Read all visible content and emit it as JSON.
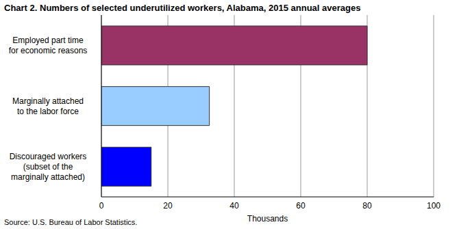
{
  "chart_data": {
    "type": "bar",
    "orientation": "horizontal",
    "title": "Chart 2. Numbers of selected underutilized workers, Alabama, 2015 annual averages",
    "categories": [
      "Employed part time for economic reasons",
      "Marginally attached to the labor force",
      "Discouraged workers (subset of the marginally attached)"
    ],
    "values": [
      80,
      32.5,
      15
    ],
    "colors": [
      "#993366",
      "#99ccff",
      "#0000ff"
    ],
    "xlabel": "Thousands",
    "xlim": [
      0,
      100
    ],
    "xticks": [
      0,
      20,
      40,
      60,
      80,
      100
    ],
    "grid": true,
    "source": "Source: U.S. Bureau of Labor Statistics."
  }
}
